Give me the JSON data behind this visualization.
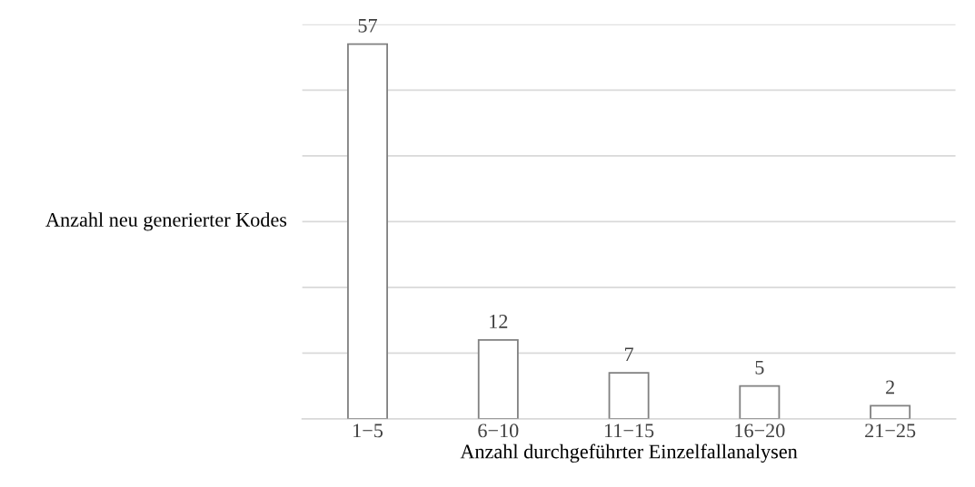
{
  "chart_data": {
    "type": "bar",
    "xlabel": "Anzahl durchgeführter Einzelfallanalysen",
    "ylabel": "Anzahl neu generierter Kodes",
    "categories": [
      "1−5",
      "6−10",
      "11−15",
      "16−20",
      "21−25"
    ],
    "values": [
      57,
      12,
      7,
      5,
      2
    ],
    "color": "#ffffff",
    "ylim": [
      0,
      60
    ],
    "yticks": [
      {
        "value": 0,
        "label": null
      },
      {
        "value": 10,
        "label": null
      },
      {
        "value": 20,
        "label": null
      },
      {
        "value": 30,
        "label": null
      },
      {
        "value": 40,
        "label": null
      },
      {
        "value": 50,
        "label": null
      },
      {
        "value": 60,
        "label": null
      }
    ],
    "tick_labels": "x",
    "grid": "y",
    "data_labels": true
  }
}
